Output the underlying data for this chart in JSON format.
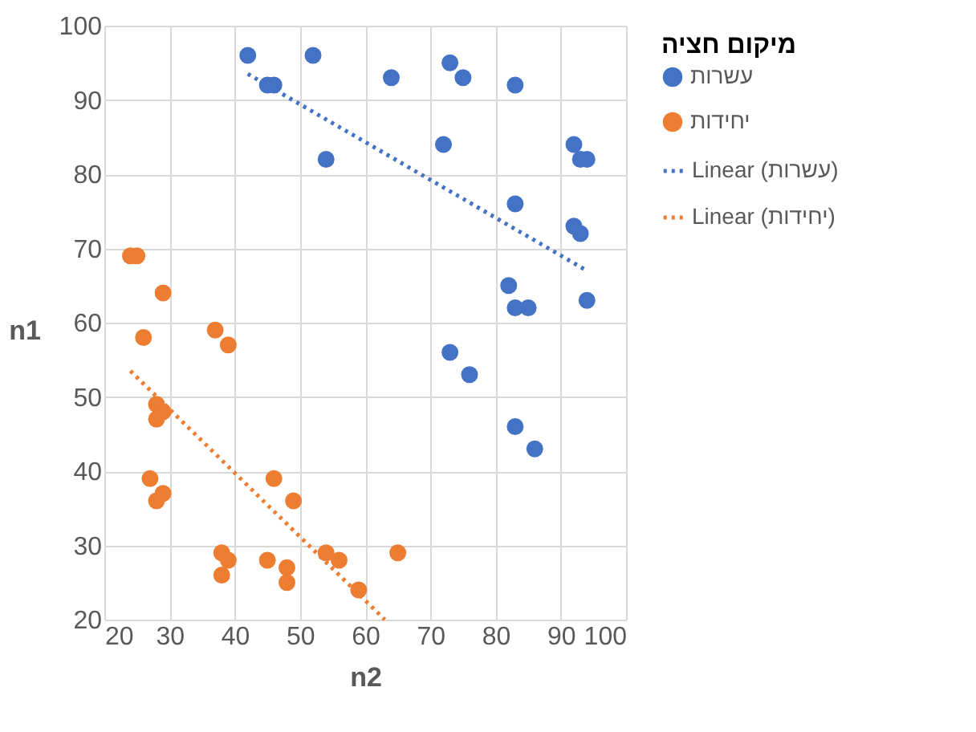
{
  "chart_data": {
    "type": "scatter",
    "xlabel": "n2",
    "ylabel": "n1",
    "legend_title": "מיקום חציה",
    "legend": "right",
    "grid": true,
    "xlim": [
      20,
      100
    ],
    "xticks": [
      20,
      30,
      40,
      50,
      60,
      70,
      80,
      90,
      100
    ],
    "ylim": [
      20,
      100
    ],
    "yticks": [
      20,
      30,
      40,
      50,
      60,
      70,
      80,
      90,
      100
    ],
    "series": [
      {
        "name": "עשרות",
        "marker": "circle",
        "color": "#4472c4",
        "x": [
          42,
          52,
          45,
          46,
          64,
          73,
          75,
          83,
          54,
          72,
          92,
          93,
          94,
          83,
          92,
          93,
          82,
          83,
          85,
          94,
          73,
          76,
          83,
          86
        ],
        "values": [
          96,
          96,
          92,
          92,
          93,
          95,
          93,
          92,
          82,
          84,
          84,
          82,
          82,
          76,
          73,
          72,
          65,
          62,
          62,
          63,
          56,
          53,
          46,
          43
        ]
      },
      {
        "name": "יחידות",
        "marker": "circle",
        "color": "#ed7d31",
        "x": [
          24,
          25,
          29,
          26,
          37,
          39,
          28,
          29,
          28,
          27,
          29,
          28,
          38,
          39,
          38,
          45,
          48,
          48,
          46,
          49,
          54,
          56,
          59,
          65
        ],
        "values": [
          69,
          69,
          64,
          58,
          59,
          57,
          49,
          48,
          47,
          39,
          37,
          36,
          29,
          28,
          26,
          28,
          27,
          25,
          39,
          36,
          29,
          28,
          24,
          29
        ]
      },
      {
        "name": "Linear (עשרות)",
        "type": "line",
        "marker": "none",
        "line_style": "dotted",
        "color": "#4472c4",
        "x": [
          42,
          94
        ],
        "values": [
          93.5,
          67
        ]
      },
      {
        "name": "Linear (יחידות)",
        "type": "line",
        "marker": "none",
        "line_style": "dotted",
        "color": "#ed7d31",
        "x": [
          24,
          63
        ],
        "values": [
          53.5,
          20
        ]
      }
    ]
  }
}
